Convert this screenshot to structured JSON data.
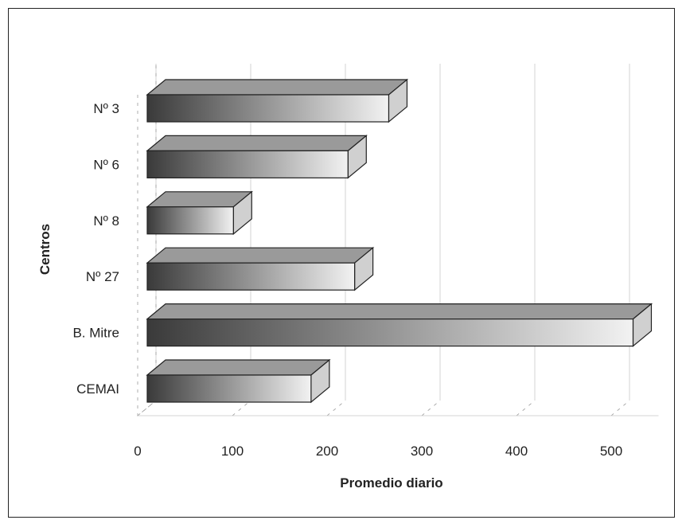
{
  "chart_data": {
    "type": "bar",
    "orientation": "horizontal",
    "style": "3d",
    "categories": [
      "Nº 3",
      "Nº 6",
      "Nº 8",
      "Nº 27",
      "B.  Mitre",
      "CEMAI"
    ],
    "values": [
      255,
      212,
      91,
      219,
      513,
      173
    ],
    "xlabel": "Promedio diario",
    "ylabel": "Centros",
    "xlim": [
      0,
      550
    ],
    "xticks": [
      0,
      100,
      200,
      300,
      400,
      500
    ],
    "grid": true,
    "legend": "none",
    "colors": {
      "bar_front_dark": "#3a3a3a",
      "bar_front_light": "#f2f2f2",
      "bar_top": "#9a9a9a",
      "bar_side": "#d0d0d0"
    }
  }
}
